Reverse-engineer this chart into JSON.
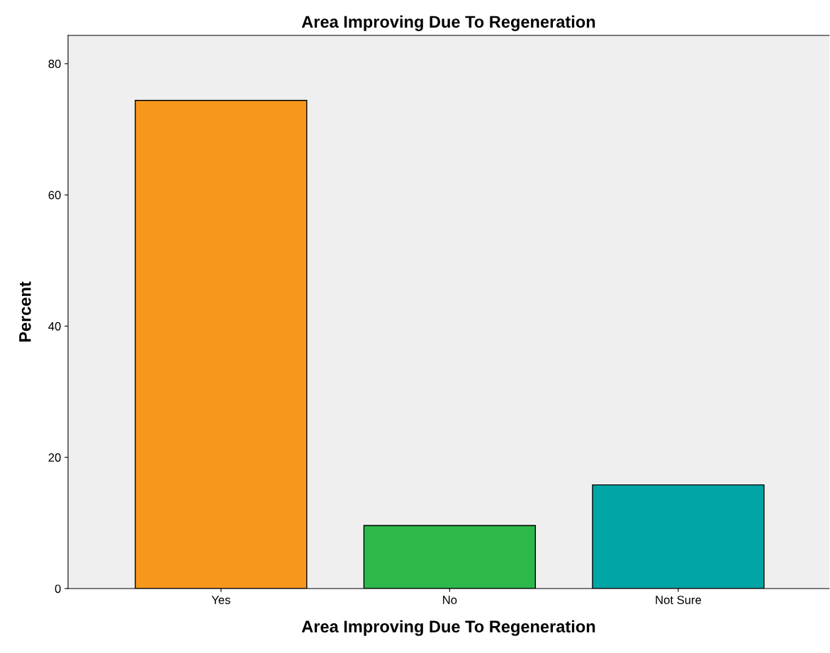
{
  "chart_data": {
    "type": "bar",
    "title": "Area Improving Due To Regeneration",
    "xlabel": "Area Improving Due To Regeneration",
    "ylabel": "Percent",
    "categories": [
      "Yes",
      "No",
      "Not Sure"
    ],
    "values": [
      74.4,
      9.6,
      15.8
    ],
    "colors": [
      "#f7981d",
      "#2db84b",
      "#00a6a6"
    ],
    "ylim": [
      0,
      84.3
    ],
    "yticks": [
      0,
      20,
      40,
      60,
      80
    ],
    "grid": false,
    "legend": false
  }
}
